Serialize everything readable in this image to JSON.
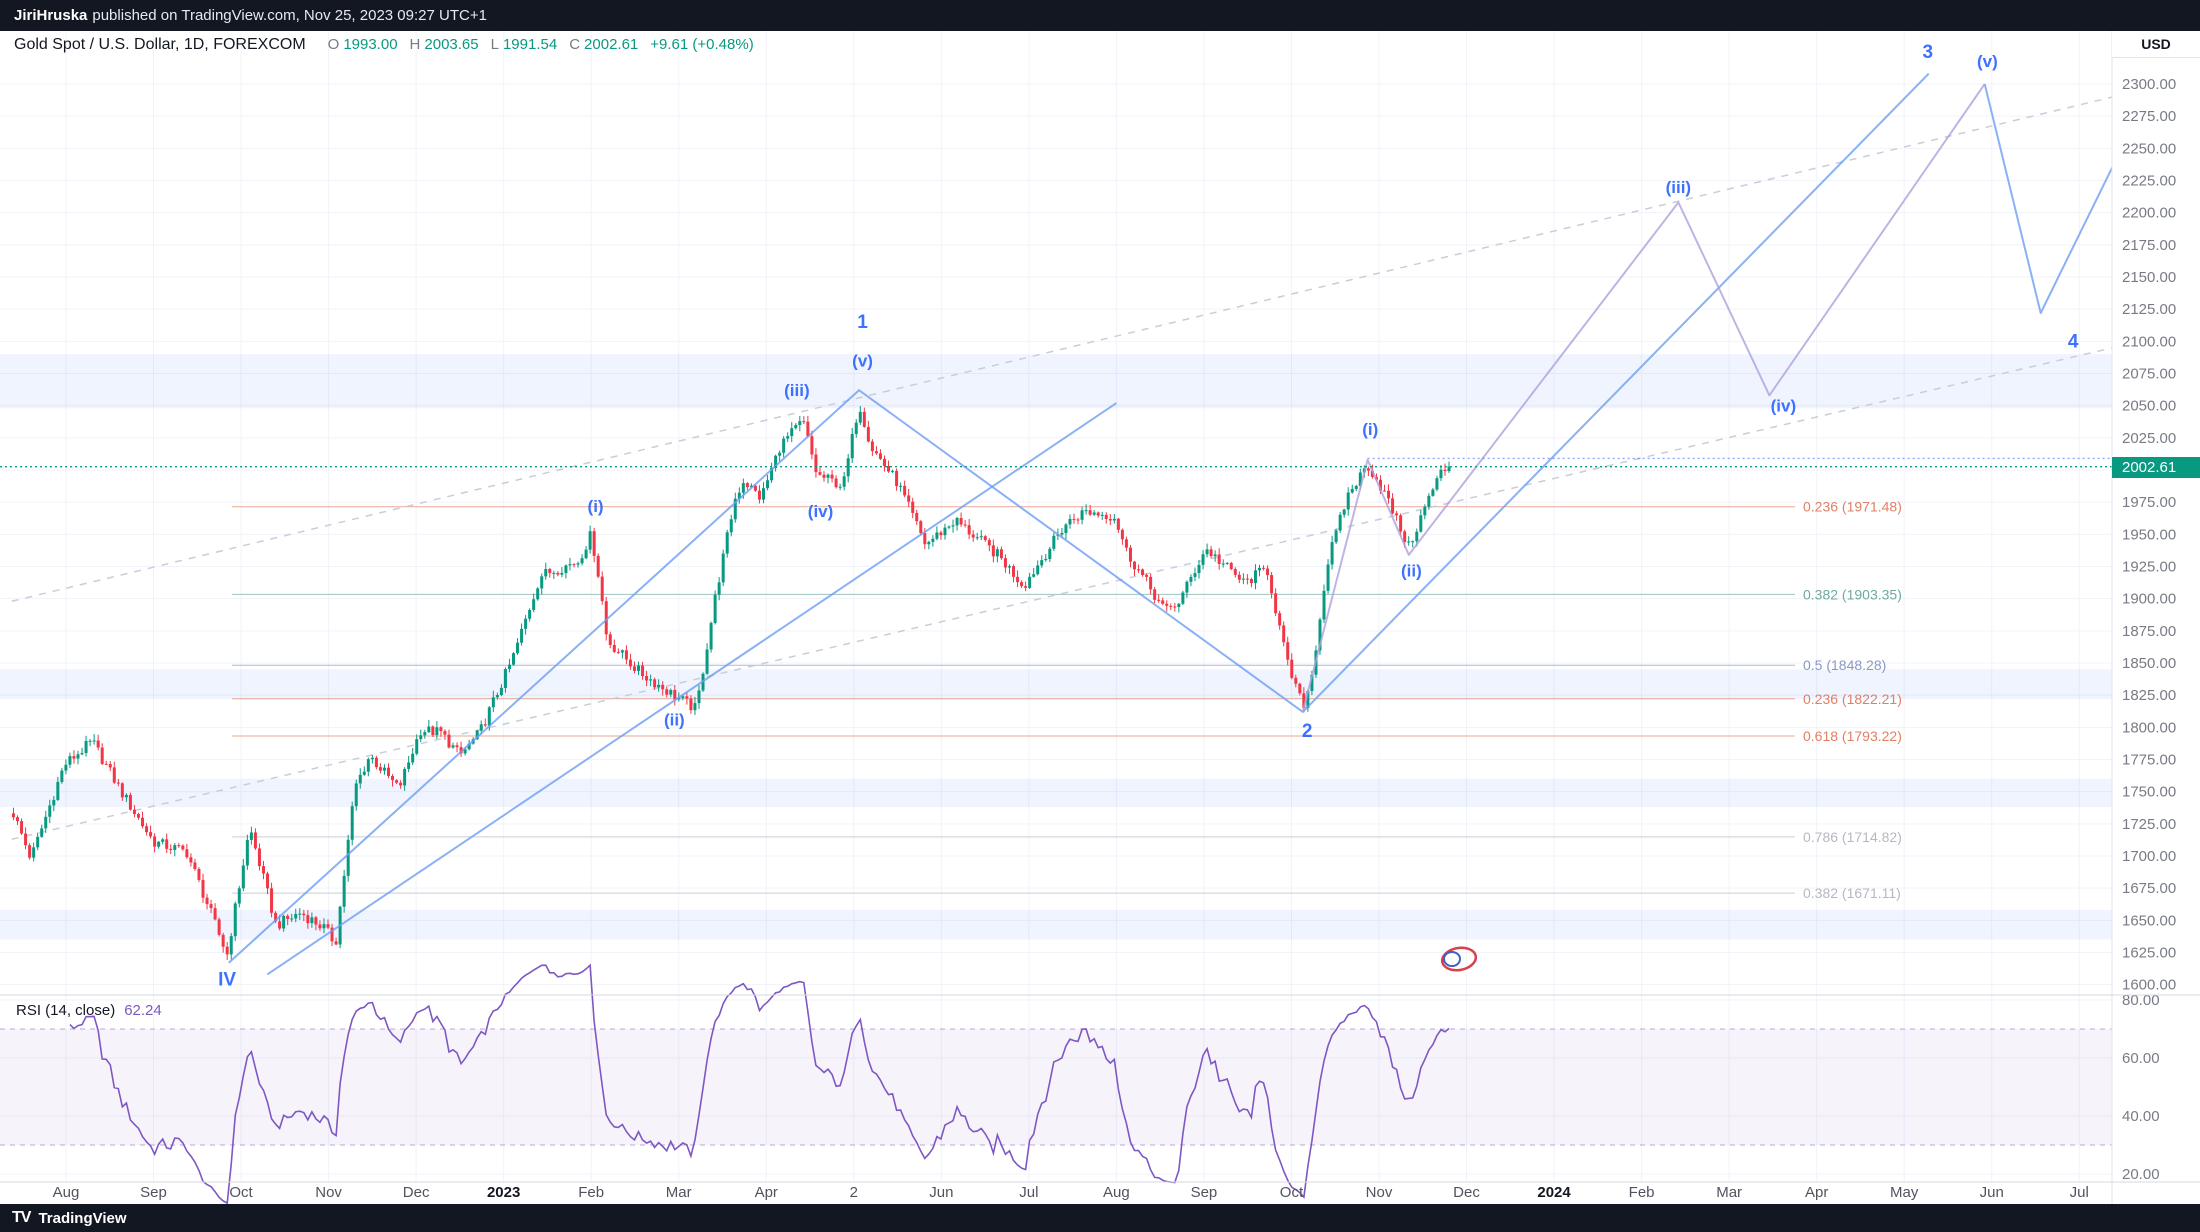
{
  "topbar": {
    "author": "JiriHruska",
    "text": "published on TradingView.com, Nov 25, 2023 09:27 UTC+1"
  },
  "symbol_header": {
    "title": "Gold Spot / U.S. Dollar, 1D, FOREXCOM",
    "o_label": "O",
    "o_value": "1993.00",
    "h_label": "H",
    "h_value": "2003.65",
    "l_label": "L",
    "l_value": "1991.54",
    "c_label": "C",
    "c_value": "2002.61",
    "change": "+9.61 (+0.48%)"
  },
  "price_axis": {
    "unit": "USD",
    "current": "2002.61",
    "labels": [
      "2300.00",
      "2275.00",
      "2250.00",
      "2225.00",
      "2200.00",
      "2175.00",
      "2150.00",
      "2125.00",
      "2100.00",
      "2075.00",
      "2050.00",
      "2025.00",
      "1975.00",
      "1950.00",
      "1925.00",
      "1900.00",
      "1875.00",
      "1850.00",
      "1825.00",
      "1800.00",
      "1775.00",
      "1750.00",
      "1725.00",
      "1700.00",
      "1675.00",
      "1650.00",
      "1625.00",
      "1600.00"
    ]
  },
  "rsi": {
    "title": "RSI (14, close)",
    "value": "62.24",
    "labels": [
      "80.00",
      "60.00",
      "40.00",
      "20.00"
    ],
    "overbought": 70,
    "oversold": 30,
    "period": 14,
    "source": "close"
  },
  "footer": {
    "logo_glyph": "TV",
    "brand": "TradingView"
  },
  "colors": {
    "up": "#089981",
    "down": "#F23645",
    "accent_teal": "#089981",
    "wave_label": "#2962FF",
    "wave_blue_line": "#6d9ef3",
    "subwave_line": "#b0a0dd",
    "rsi_line": "#7e57c2",
    "dashed_gray": "#c9cdd8",
    "grid": "#f0f3fa",
    "axis_text": "#787b86",
    "topbar_bg": "#131722"
  },
  "chart_data": {
    "type": "candlestick",
    "title": "Gold Spot / U.S. Dollar, 1D, FOREXCOM",
    "symbol": "Gold Spot / U.S. Dollar",
    "timeframe": "1D",
    "exchange": "FOREXCOM",
    "ohlc_last": {
      "open": 1993.0,
      "high": 2003.65,
      "low": 1991.54,
      "close": 2002.61,
      "change": "+9.61 (+0.48%)"
    },
    "price_axis_range": {
      "min": 1600,
      "max": 2300,
      "step": 25
    },
    "time_axis": [
      {
        "text": "Aug",
        "t": 0
      },
      {
        "text": "Sep",
        "t": 1
      },
      {
        "text": "Oct",
        "t": 2
      },
      {
        "text": "Nov",
        "t": 3
      },
      {
        "text": "Dec",
        "t": 4
      },
      {
        "text": "2023",
        "t": 5,
        "year": true
      },
      {
        "text": "Feb",
        "t": 6
      },
      {
        "text": "Mar",
        "t": 7
      },
      {
        "text": "Apr",
        "t": 8
      },
      {
        "text": "2",
        "t": 9
      },
      {
        "text": "Jun",
        "t": 10
      },
      {
        "text": "Jul",
        "t": 11
      },
      {
        "text": "Aug",
        "t": 12
      },
      {
        "text": "Sep",
        "t": 13
      },
      {
        "text": "Oct",
        "t": 14
      },
      {
        "text": "Nov",
        "t": 15
      },
      {
        "text": "Dec",
        "t": 16
      },
      {
        "text": "2024",
        "t": 17,
        "year": true
      },
      {
        "text": "Feb",
        "t": 18
      },
      {
        "text": "Mar",
        "t": 19
      },
      {
        "text": "Apr",
        "t": 20
      },
      {
        "text": "May",
        "t": 21
      },
      {
        "text": "Jun",
        "t": 22
      },
      {
        "text": "Jul",
        "t": 23
      }
    ],
    "price": {
      "units": "USD",
      "anchor_time_unit": "months since 2022-08-01",
      "close_anchors": [
        [
          -0.6,
          1733
        ],
        [
          -0.4,
          1698
        ],
        [
          -0.05,
          1765
        ],
        [
          0,
          1772
        ],
        [
          0.3,
          1789
        ],
        [
          0.65,
          1748
        ],
        [
          1,
          1711
        ],
        [
          1.38,
          1703
        ],
        [
          1.55,
          1674
        ],
        [
          1.84,
          1623
        ],
        [
          1.93,
          1658
        ],
        [
          2.1,
          1722
        ],
        [
          2.4,
          1646
        ],
        [
          2.68,
          1656
        ],
        [
          2.95,
          1644
        ],
        [
          3.08,
          1632
        ],
        [
          3.3,
          1753
        ],
        [
          3.47,
          1778
        ],
        [
          3.8,
          1752
        ],
        [
          4.05,
          1798
        ],
        [
          4.28,
          1796
        ],
        [
          4.5,
          1778
        ],
        [
          4.72,
          1795
        ],
        [
          5.1,
          1853
        ],
        [
          5.42,
          1918
        ],
        [
          5.85,
          1929
        ],
        [
          6,
          1950
        ],
        [
          6.1,
          1912
        ],
        [
          6.18,
          1868
        ],
        [
          6.55,
          1843
        ],
        [
          6.92,
          1826
        ],
        [
          7.2,
          1814
        ],
        [
          7.42,
          1902
        ],
        [
          7.64,
          1977
        ],
        [
          7.74,
          1992
        ],
        [
          7.94,
          1978
        ],
        [
          8.16,
          2019
        ],
        [
          8.42,
          2038
        ],
        [
          8.58,
          1996
        ],
        [
          8.88,
          1988
        ],
        [
          9.06,
          2052
        ],
        [
          9.2,
          2018
        ],
        [
          9.5,
          1990
        ],
        [
          9.82,
          1942
        ],
        [
          10.16,
          1961
        ],
        [
          10.66,
          1933
        ],
        [
          10.94,
          1910
        ],
        [
          11.42,
          1958
        ],
        [
          11.64,
          1968
        ],
        [
          11.98,
          1964
        ],
        [
          12.12,
          1936
        ],
        [
          12.56,
          1890
        ],
        [
          12.72,
          1898
        ],
        [
          13.02,
          1939
        ],
        [
          13.46,
          1912
        ],
        [
          13.72,
          1924
        ],
        [
          13.95,
          1850
        ],
        [
          14.13,
          1816
        ],
        [
          14.22,
          1835
        ],
        [
          14.42,
          1930
        ],
        [
          14.64,
          1980
        ],
        [
          14.87,
          2004
        ],
        [
          15.05,
          1984
        ],
        [
          15.34,
          1940
        ],
        [
          15.58,
          1980
        ],
        [
          15.71,
          1998
        ],
        [
          15.8,
          2002.61
        ]
      ]
    },
    "fib_levels": [
      {
        "label": "0.236 (1971.48)",
        "price": 1971.48,
        "color": "#e0795c"
      },
      {
        "label": "0.382 (1903.35)",
        "price": 1903.35,
        "color": "#66a69b"
      },
      {
        "label": "0.5 (1848.28)",
        "price": 1848.28,
        "color": "#8492c4"
      },
      {
        "label": "0.236 (1822.21)",
        "price": 1822.21,
        "color": "#e0795c"
      },
      {
        "label": "0.618 (1793.22)",
        "price": 1793.22,
        "color": "#e0795c"
      },
      {
        "label": "0.786 (1714.82)",
        "price": 1714.82,
        "color": "#b2b5be"
      },
      {
        "label": "0.382 (1671.11)",
        "price": 1671.11,
        "color": "#b2b5be"
      }
    ],
    "bands": [
      [
        2048,
        2090
      ],
      [
        1822,
        1845
      ],
      [
        1738,
        1760
      ],
      [
        1635,
        1658
      ]
    ],
    "elliott_labels": [
      {
        "text": "IV",
        "t": 1.84,
        "price": 1604
      },
      {
        "text": "(i)",
        "t": 6.05,
        "price": 1972
      },
      {
        "text": "(ii)",
        "t": 6.95,
        "price": 1806
      },
      {
        "text": "(iii)",
        "t": 8.35,
        "price": 2062
      },
      {
        "text": "(iv)",
        "t": 8.62,
        "price": 1968
      },
      {
        "text": "(v)",
        "t": 9.1,
        "price": 2085
      },
      {
        "text": "1",
        "t": 9.1,
        "price": 2115
      },
      {
        "text": "2",
        "t": 14.18,
        "price": 1797
      },
      {
        "text": "(i)",
        "t": 14.9,
        "price": 2032
      },
      {
        "text": "(ii)",
        "t": 15.37,
        "price": 1922
      },
      {
        "text": "(iii)",
        "t": 18.42,
        "price": 2220
      },
      {
        "text": "(iv)",
        "t": 19.62,
        "price": 2050
      },
      {
        "text": "3",
        "t": 21.27,
        "price": 2325
      },
      {
        "text": "(v)",
        "t": 21.95,
        "price": 2318
      },
      {
        "text": "4",
        "t": 22.93,
        "price": 2100
      }
    ],
    "lines": {
      "impulse_blue": [
        [
          1.86,
          1617
        ],
        [
          9.06,
          2062
        ],
        [
          14.13,
          1812
        ],
        [
          21.28,
          2308
        ]
      ],
      "descent_blue": [
        [
          21.92,
          2300
        ],
        [
          22.56,
          2122
        ],
        [
          23.57,
          2262
        ]
      ],
      "trend_blue": [
        [
          2.3,
          1608
        ],
        [
          12,
          2052
        ]
      ],
      "subwave_purple": [
        [
          14.13,
          1812
        ],
        [
          14.87,
          2008
        ],
        [
          15.34,
          1934
        ],
        [
          18.42,
          2208
        ],
        [
          19.46,
          2058
        ],
        [
          21.92,
          2300
        ]
      ],
      "dashed_gray": [
        [
          [
            -0.62,
            1898
          ],
          [
            23.57,
            2293
          ]
        ],
        [
          [
            -0.62,
            1713
          ],
          [
            23.57,
            2098
          ]
        ]
      ],
      "dotted_blue_level": {
        "price": 2009,
        "from_t": 14.87
      },
      "current_price_line": 2002.61
    }
  }
}
